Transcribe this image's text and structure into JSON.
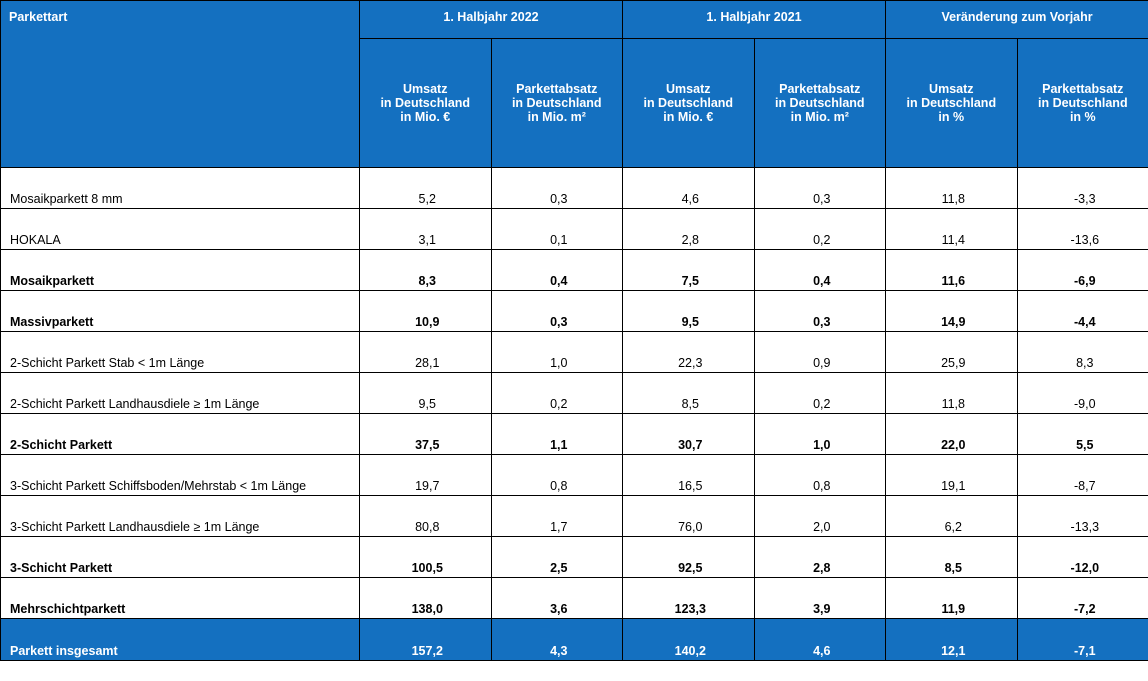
{
  "header": {
    "col_label": "Parkettart",
    "groups": [
      "1. Halbjahr  2022",
      "1. Halbjahr 2021",
      "Veränderung zum Vorjahr"
    ],
    "sub_headers": [
      [
        "Umsatz",
        "in Deutschland",
        "in Mio. €"
      ],
      [
        "Parkettabsatz",
        "in Deutschland",
        "in Mio. m²"
      ],
      [
        "Umsatz",
        "in Deutschland",
        "in Mio. €"
      ],
      [
        "Parkettabsatz",
        "in Deutschland",
        "in Mio. m²"
      ],
      [
        "Umsatz",
        "in Deutschland",
        "in %"
      ],
      [
        "Parkettabsatz",
        "in Deutschland",
        "in %"
      ]
    ]
  },
  "rows": [
    {
      "name": "Mosaikparkett 8 mm",
      "bold": false,
      "values": [
        "5,2",
        "0,3",
        "4,6",
        "0,3",
        "11,8",
        "-3,3"
      ]
    },
    {
      "name": "HOKALA",
      "bold": false,
      "values": [
        "3,1",
        "0,1",
        "2,8",
        "0,2",
        "11,4",
        "-13,6"
      ]
    },
    {
      "name": "Mosaikparkett",
      "bold": true,
      "values": [
        "8,3",
        "0,4",
        "7,5",
        "0,4",
        "11,6",
        "-6,9"
      ]
    },
    {
      "name": "Massivparkett",
      "bold": true,
      "values": [
        "10,9",
        "0,3",
        "9,5",
        "0,3",
        "14,9",
        "-4,4"
      ]
    },
    {
      "name": "2-Schicht Parkett  Stab < 1m Länge",
      "bold": false,
      "values": [
        "28,1",
        "1,0",
        "22,3",
        "0,9",
        "25,9",
        "8,3"
      ]
    },
    {
      "name": "2-Schicht Parkett Landhausdiele ≥ 1m Länge",
      "bold": false,
      "values": [
        "9,5",
        "0,2",
        "8,5",
        "0,2",
        "11,8",
        "-9,0"
      ]
    },
    {
      "name": "2-Schicht Parkett",
      "bold": true,
      "values": [
        "37,5",
        "1,1",
        "30,7",
        "1,0",
        "22,0",
        "5,5"
      ]
    },
    {
      "name": "3-Schicht Parkett Schiffsboden/Mehrstab < 1m Länge",
      "bold": false,
      "values": [
        "19,7",
        "0,8",
        "16,5",
        "0,8",
        "19,1",
        "-8,7"
      ]
    },
    {
      "name": "3-Schicht Parkett Landhausdiele ≥ 1m Länge",
      "bold": false,
      "values": [
        "80,8",
        "1,7",
        "76,0",
        "2,0",
        "6,2",
        "-13,3"
      ]
    },
    {
      "name": "3-Schicht Parkett",
      "bold": true,
      "values": [
        "100,5",
        "2,5",
        "92,5",
        "2,8",
        "8,5",
        "-12,0"
      ]
    },
    {
      "name": "Mehrschichtparkett",
      "bold": true,
      "values": [
        "138,0",
        "3,6",
        "123,3",
        "3,9",
        "11,9",
        "-7,2"
      ]
    }
  ],
  "total": {
    "name": "Parkett insgesamt",
    "values": [
      "157,2",
      "4,3",
      "140,2",
      "4,6",
      "12,1",
      "-7,1"
    ]
  },
  "colors": {
    "header_bg": "#1470c0",
    "header_text": "#ffffff",
    "grid": "#000000"
  }
}
